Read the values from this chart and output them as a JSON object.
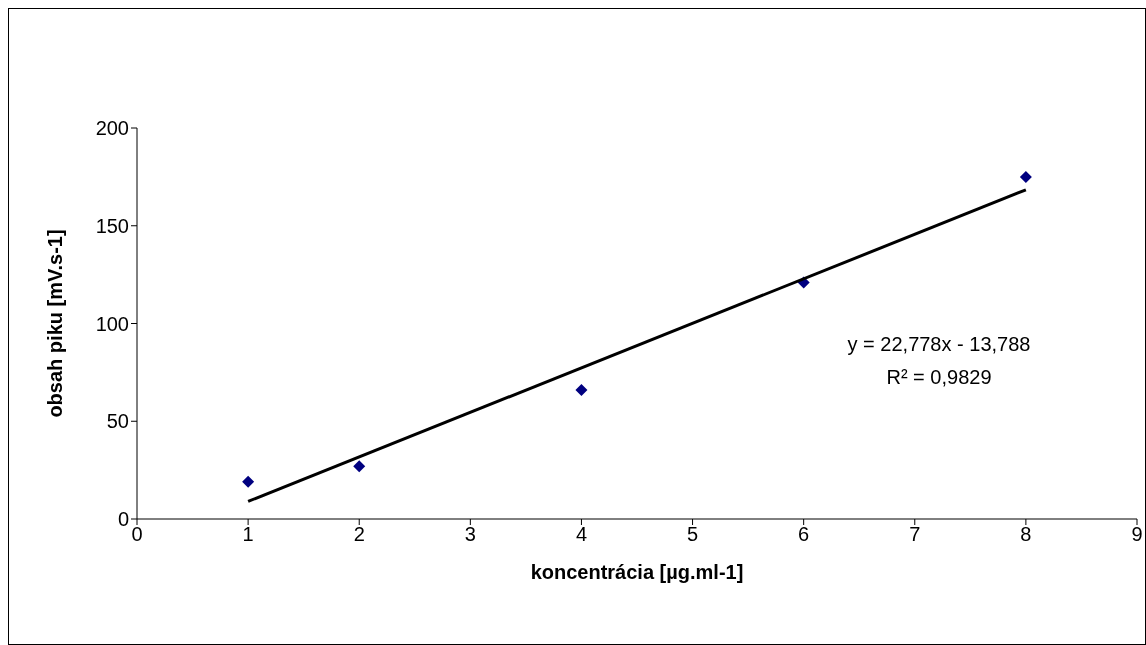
{
  "chart_data": {
    "type": "scatter",
    "xlabel": "koncentrácia [µg.ml-1]",
    "ylabel": "obsah piku [mV.s-1]",
    "x": [
      1,
      2,
      4,
      6,
      8
    ],
    "series": [
      {
        "color": "#000080",
        "values": [
          19,
          27,
          66,
          121,
          175
        ],
        "marker": "diamond"
      },
      {
        "type": "line",
        "color": "#000000",
        "x": [
          1,
          8
        ],
        "values": [
          9,
          168.4
        ],
        "marker": "none"
      }
    ],
    "xlim": [
      0,
      9
    ],
    "xticks": [
      0,
      1,
      2,
      3,
      4,
      5,
      6,
      7,
      8,
      9
    ],
    "ylim": [
      0,
      200
    ],
    "yticks": [
      0,
      50,
      100,
      150,
      200
    ],
    "annotations": [
      "y = 22,778x - 13,788",
      "R² = 0,9829"
    ]
  }
}
